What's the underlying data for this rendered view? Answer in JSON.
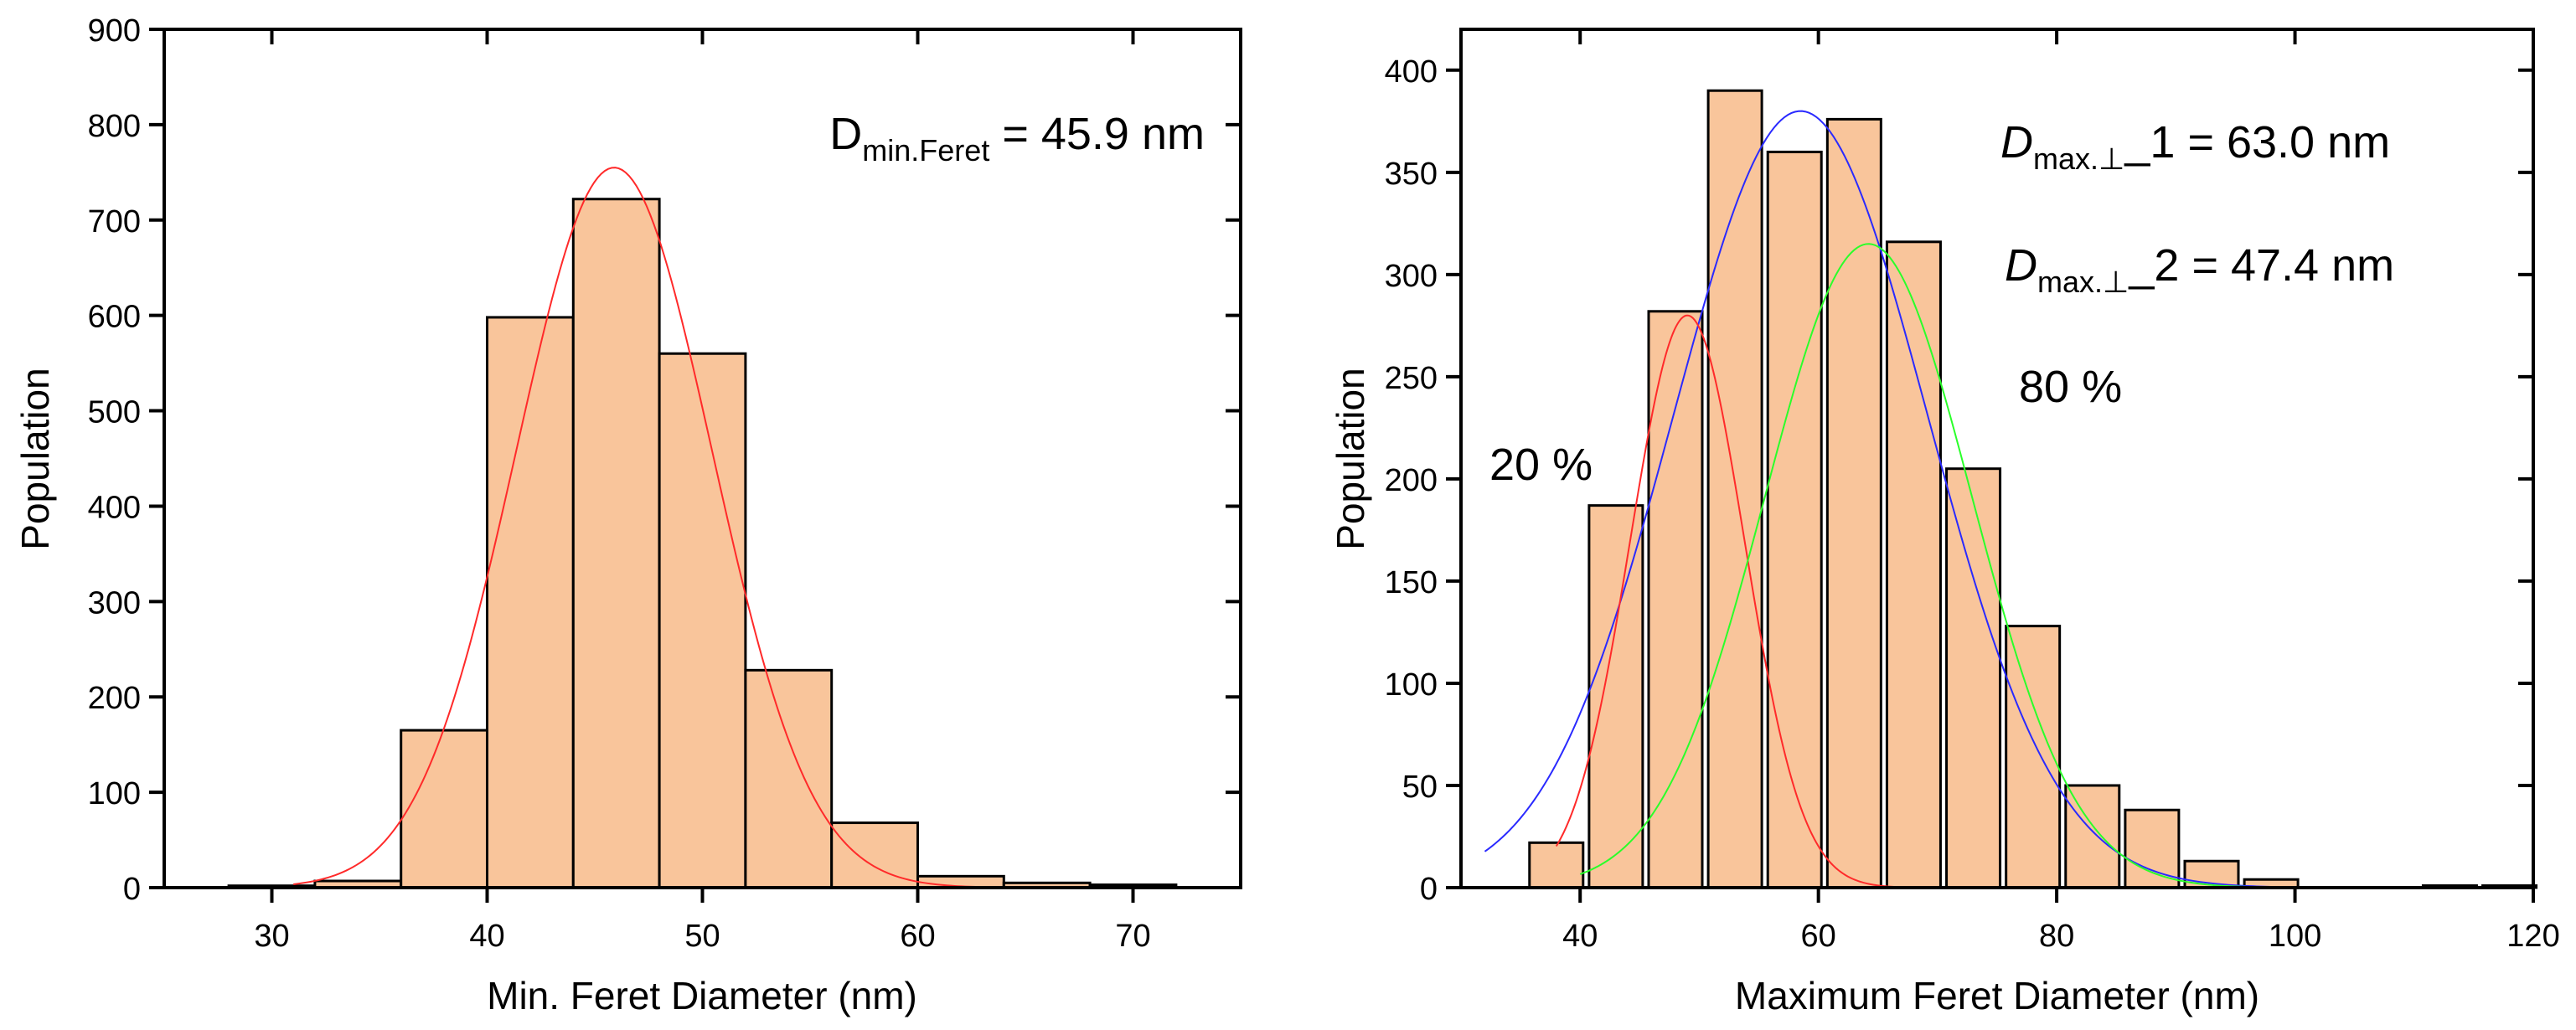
{
  "chart_data": [
    {
      "type": "bar",
      "xlabel": "Min. Feret Diameter (nm)",
      "ylabel": "Population",
      "xlim": [
        25,
        75
      ],
      "ylim": [
        0,
        900
      ],
      "xticks": [
        30,
        40,
        50,
        60,
        70
      ],
      "yticks": [
        0,
        100,
        200,
        300,
        400,
        500,
        600,
        700,
        800,
        900
      ],
      "bin_width": 4,
      "bin_centers": [
        30,
        34,
        38,
        42,
        46,
        50,
        54,
        58,
        62,
        66,
        70
      ],
      "values": [
        2,
        7,
        165,
        598,
        722,
        560,
        228,
        68,
        12,
        5,
        3
      ],
      "annotation": {
        "main": "D",
        "sub": "min.Feret",
        "rest": " = 45.9 nm"
      },
      "fit": {
        "type": "gaussian",
        "center": 45.9,
        "amplitude": 755,
        "sigma": 4.55,
        "color": "#ff2a2a",
        "x_range": [
          31,
          70
        ]
      },
      "bar_color": "#f9c59b",
      "grid": false
    },
    {
      "type": "bar",
      "xlabel": "Maximum Feret Diameter (nm)",
      "ylabel": "Population",
      "xlim": [
        30,
        120
      ],
      "ylim": [
        0,
        420
      ],
      "xticks": [
        40,
        60,
        80,
        100,
        120
      ],
      "yticks": [
        0,
        50,
        100,
        150,
        200,
        250,
        300,
        350,
        400
      ],
      "bin_width": 4.5,
      "bin_centers": [
        38,
        43,
        48,
        53,
        58,
        63,
        68,
        73,
        78,
        83,
        88,
        93,
        98,
        103,
        108,
        113,
        118
      ],
      "values": [
        22,
        187,
        282,
        390,
        360,
        376,
        316,
        205,
        128,
        50,
        38,
        13,
        4,
        0,
        0,
        1,
        1
      ],
      "annotations": [
        {
          "main": "D",
          "sub": "max.⊥",
          "rest": "_1 = 63.0 nm"
        },
        {
          "main": "D",
          "sub": "max.⊥",
          "rest": "_2 = 47.4 nm"
        }
      ],
      "percent_left": "20 %",
      "percent_right": "80 %",
      "fits": [
        {
          "type": "gaussian",
          "name": "cumulative",
          "center": 58.5,
          "amplitude": 380,
          "sigma": 10.7,
          "color": "#2a2aff",
          "x_range": [
            32,
            103
          ]
        },
        {
          "type": "gaussian",
          "name": "peak-1",
          "center": 49,
          "amplitude": 280,
          "sigma": 4.8,
          "color": "#ff2a2a",
          "x_range": [
            38,
            72
          ]
        },
        {
          "type": "gaussian",
          "name": "peak-2",
          "center": 64.2,
          "amplitude": 315,
          "sigma": 8.7,
          "color": "#2aff2a",
          "x_range": [
            40,
            100
          ]
        }
      ],
      "bar_color": "#f9c59b",
      "grid": false
    }
  ]
}
